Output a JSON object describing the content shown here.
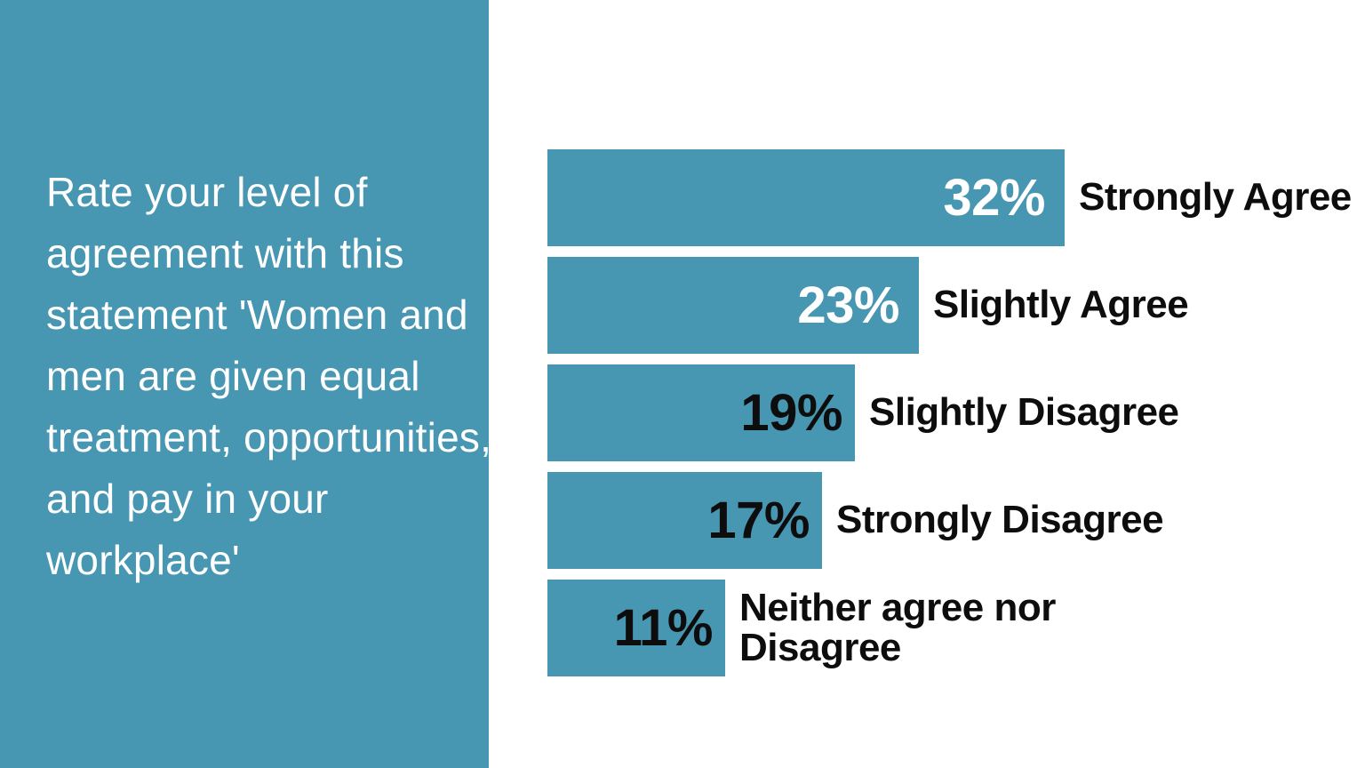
{
  "colors": {
    "accent_teal": "#4796B2",
    "background": "#FFFFFF",
    "sidebar_text": "#FFFFFF",
    "category_label_text": "#0D0D0D",
    "value_label_light": "#FFFFFF",
    "value_label_dark": "#0D0D0D"
  },
  "sidebar": {
    "question": "Rate your level of agreement with this statement 'Women and men are given equal treatment, opportunities, and pay in your workplace'",
    "question_lines": [
      "Rate your level of",
      "agreement with this",
      "statement 'Women and",
      "men are given equal",
      "treatment, opportunities,",
      "and pay in your",
      "workplace'"
    ]
  },
  "chart_data": {
    "type": "bar",
    "orientation": "horizontal",
    "title": "Rate your level of agreement with this statement 'Women and men are given equal treatment, opportunities, and pay in your workplace'",
    "categories": [
      "Strongly Agree",
      "Slightly Agree",
      "Slightly Disagree",
      "Strongly Disagree",
      "Neither agree nor Disagree"
    ],
    "values": [
      32,
      23,
      19,
      17,
      11
    ],
    "value_labels": [
      "32%",
      "23%",
      "19%",
      "17%",
      "11%"
    ],
    "unit": "%",
    "xlim": [
      0,
      32
    ],
    "bar_color": "#4796B2",
    "value_label_colors": [
      "#FFFFFF",
      "#FFFFFF",
      "#0D0D0D",
      "#0D0D0D",
      "#0D0D0D"
    ],
    "value_label_position": "inside-end",
    "category_label_position": "outside-end",
    "legend": false,
    "gridlines": false,
    "axes_visible": false
  }
}
